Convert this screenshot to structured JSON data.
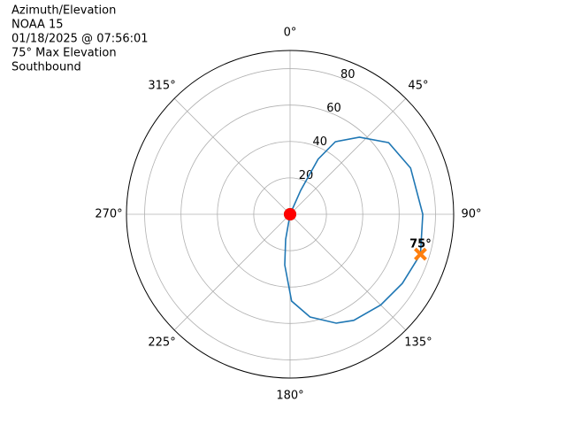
{
  "chart_data": {
    "type": "polar",
    "title_lines": [
      "Azimuth/Elevation",
      "NOAA 15",
      "01/18/2025 @ 07:56:01",
      "75° Max Elevation",
      "Southbound"
    ],
    "theta_direction": "clockwise",
    "theta_zero": "N",
    "theta": [
      0,
      24,
      27,
      32,
      42,
      54,
      69,
      90,
      107,
      121.6,
      135,
      149,
      157,
      169,
      179,
      186,
      190,
      0
    ],
    "r": [
      0,
      14.4,
      34,
      47,
      57,
      67,
      71,
      73,
      75,
      72.5,
      70.5,
      68,
      65,
      57.5,
      47.7,
      28,
      14,
      0
    ],
    "line_color": "#1f77b4",
    "points": [
      {
        "theta": 0,
        "r": 0,
        "color": "#2ca02c",
        "marker": "o"
      },
      {
        "theta": 0,
        "r": 0,
        "color": "#ff0000",
        "marker": "o"
      },
      {
        "theta": 107,
        "r": 75,
        "color": "#ff7f0e",
        "marker": "x",
        "value_label": "75°"
      }
    ],
    "rlim": [
      0,
      90
    ],
    "rticks": [
      20,
      40,
      60,
      80
    ],
    "thetaticks": [
      {
        "value": 0,
        "label": "0°"
      },
      {
        "value": 45,
        "label": "45°"
      },
      {
        "value": 90,
        "label": "90°"
      },
      {
        "value": 135,
        "label": "135°"
      },
      {
        "value": 180,
        "label": "180°"
      },
      {
        "value": 225,
        "label": "225°"
      },
      {
        "value": 270,
        "label": "270°"
      },
      {
        "value": 315,
        "label": "315°"
      }
    ],
    "grid": true
  }
}
